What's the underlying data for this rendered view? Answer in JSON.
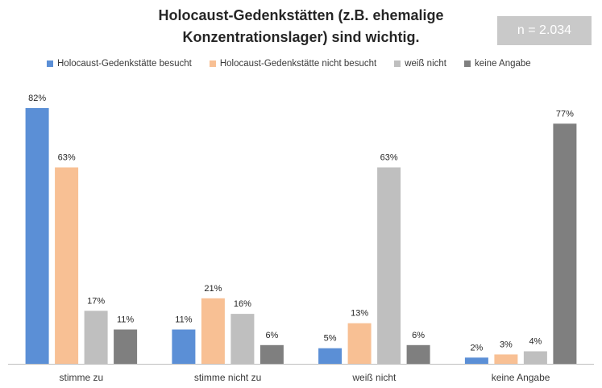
{
  "chart_data": {
    "type": "bar",
    "title_lines": [
      "Holocaust-Gedenkstätten (z.B. ehemalige",
      "Konzentrationslager) sind wichtig."
    ],
    "n_label": "n = 2.034",
    "categories": [
      "stimme zu",
      "stimme nicht zu",
      "weiß nicht",
      "keine Angabe"
    ],
    "series": [
      {
        "name": "Holocaust-Gedenkstätte besucht",
        "color": "#5b8fd6",
        "values": [
          82,
          11,
          5,
          2
        ]
      },
      {
        "name": "Holocaust-Gedenkstätte nicht besucht",
        "color": "#f8c094",
        "values": [
          63,
          21,
          13,
          3
        ]
      },
      {
        "name": "weiß nicht",
        "color": "#bfbfbf",
        "values": [
          17,
          16,
          63,
          4
        ]
      },
      {
        "name": "keine Angabe",
        "color": "#7f7f7f",
        "values": [
          11,
          6,
          6,
          77
        ]
      }
    ],
    "value_suffix": "%",
    "ylim": [
      0,
      82
    ],
    "grid": false,
    "legend_position": "top"
  }
}
